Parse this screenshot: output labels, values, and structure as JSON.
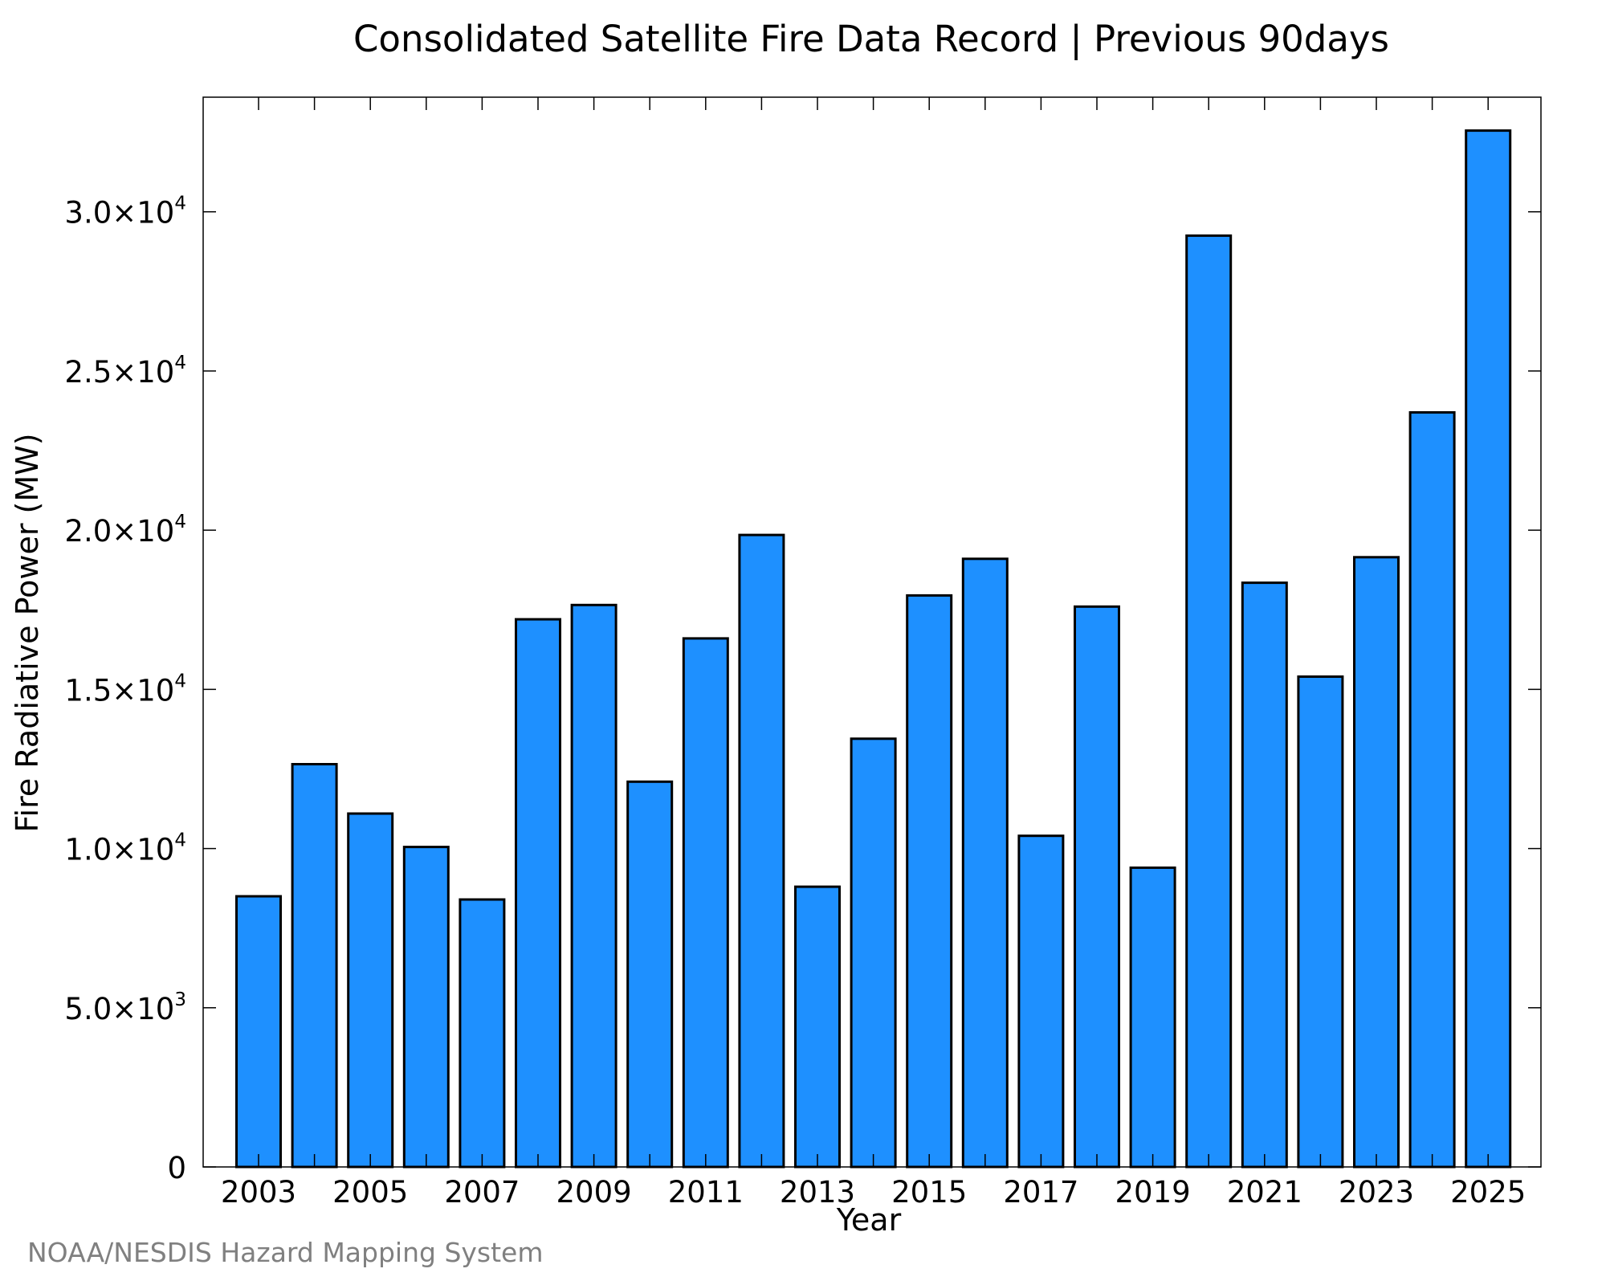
{
  "chart_data": {
    "type": "bar",
    "title": "Consolidated Satellite Fire Data Record | Previous 90days",
    "xlabel": "Year",
    "ylabel": "Fire Radiative Power (MW)",
    "categories": [
      "2003",
      "2004",
      "2005",
      "2006",
      "2007",
      "2008",
      "2009",
      "2010",
      "2011",
      "2012",
      "2013",
      "2014",
      "2015",
      "2016",
      "2017",
      "2018",
      "2019",
      "2020",
      "2021",
      "2022",
      "2023",
      "2024",
      "2025"
    ],
    "values": [
      8500,
      12650,
      11100,
      10050,
      8400,
      17200,
      17650,
      12100,
      16600,
      19850,
      8800,
      13450,
      17950,
      19100,
      10400,
      17600,
      9400,
      29250,
      18350,
      15400,
      19150,
      23700,
      32550
    ],
    "x_tick_labels": [
      "2003",
      "2005",
      "2007",
      "2009",
      "2011",
      "2013",
      "2015",
      "2017",
      "2019",
      "2021",
      "2023",
      "2025"
    ],
    "ylim": [
      0,
      33600
    ],
    "y_ticks": [
      {
        "value": 0,
        "mantissa": "0",
        "exponent": ""
      },
      {
        "value": 5000,
        "mantissa": "5.0×10",
        "exponent": "3"
      },
      {
        "value": 10000,
        "mantissa": "1.0×10",
        "exponent": "4"
      },
      {
        "value": 15000,
        "mantissa": "1.5×10",
        "exponent": "4"
      },
      {
        "value": 20000,
        "mantissa": "2.0×10",
        "exponent": "4"
      },
      {
        "value": 25000,
        "mantissa": "2.5×10",
        "exponent": "4"
      },
      {
        "value": 30000,
        "mantissa": "3.0×10",
        "exponent": "4"
      }
    ],
    "bar_color": "#1e90ff",
    "bar_edge_color": "#000000",
    "grid": false,
    "legend": "none"
  },
  "footer": {
    "credit": "NOAA/NESDIS Hazard Mapping System"
  }
}
